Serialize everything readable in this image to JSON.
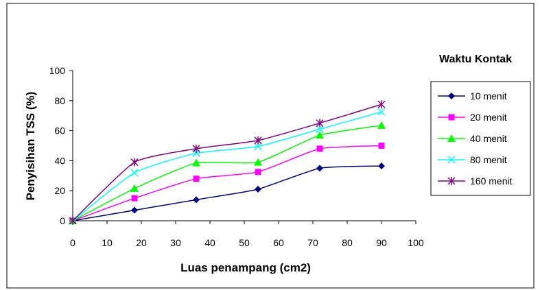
{
  "chart_data": {
    "type": "line",
    "title": "",
    "xlabel": "Luas penampang (cm2)",
    "ylabel": "Penyisihan TSS (%)",
    "xlim": [
      0,
      100
    ],
    "ylim": [
      0,
      100
    ],
    "xticks": [
      "0",
      "10",
      "20",
      "30",
      "40",
      "50",
      "60",
      "70",
      "80",
      "90",
      "100"
    ],
    "yticks": [
      "0",
      "20",
      "40",
      "60",
      "80",
      "100"
    ],
    "grid": false,
    "legend_title": "Waktu Kontak",
    "legend_position": "right",
    "x": [
      0,
      18,
      36,
      54,
      72,
      90
    ],
    "series": [
      {
        "name": "10 menit",
        "color": "#000080",
        "marker": "diamond",
        "values": [
          0,
          7,
          14,
          21,
          35,
          36.5
        ]
      },
      {
        "name": "20 menit",
        "color": "#ff00ff",
        "marker": "square",
        "values": [
          0,
          15,
          28,
          32.5,
          48,
          50
        ]
      },
      {
        "name": "40 menit",
        "color": "#00ff00",
        "marker": "triangle",
        "values": [
          0,
          21.5,
          38.5,
          39,
          57,
          63.5
        ]
      },
      {
        "name": "80 menit",
        "color": "#00ffff",
        "marker": "x",
        "values": [
          0,
          32,
          45,
          49.5,
          61,
          72.5
        ]
      },
      {
        "name": "160 menit",
        "color": "#800080",
        "marker": "star",
        "values": [
          0,
          39,
          48,
          53.5,
          65,
          77.5
        ]
      }
    ]
  }
}
